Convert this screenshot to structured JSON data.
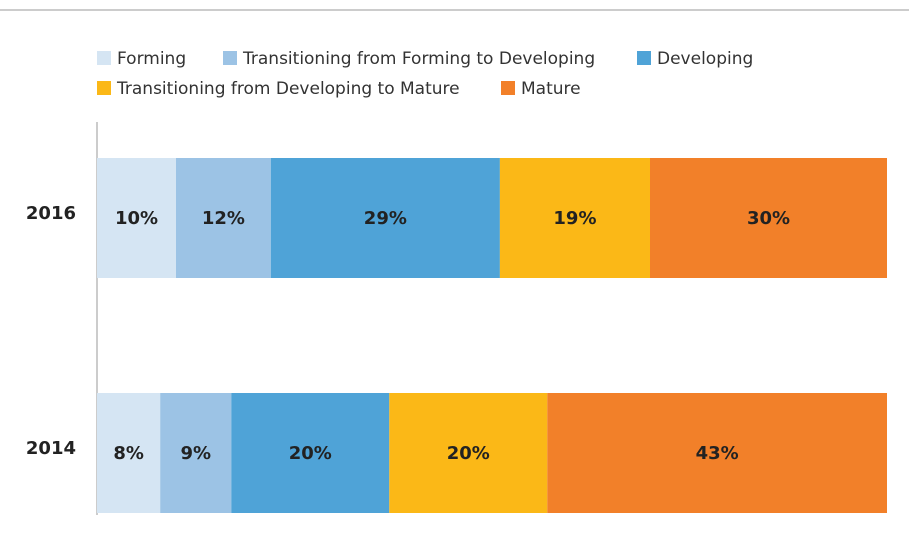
{
  "chart_data": {
    "type": "stacked-bar-horizontal",
    "categories": [
      "2016",
      "2014"
    ],
    "series": [
      {
        "name": "Forming",
        "color": "#d5e5f3",
        "values": [
          10,
          8
        ],
        "value_labels": [
          "10%",
          "8%"
        ]
      },
      {
        "name": "Transitioning from Forming to Developing",
        "color": "#9cc3e5",
        "values": [
          12,
          9
        ],
        "value_labels": [
          "12%",
          "9%"
        ]
      },
      {
        "name": "Developing",
        "color": "#4fa3d7",
        "values": [
          29,
          20
        ],
        "value_labels": [
          "29%",
          "20%"
        ]
      },
      {
        "name": "Transitioning from Developing to Mature",
        "color": "#fbb817",
        "values": [
          19,
          20
        ],
        "value_labels": [
          "19%",
          "20%"
        ]
      },
      {
        "name": "Mature",
        "color": "#f28029",
        "values": [
          30,
          43
        ],
        "value_labels": [
          "30%",
          "43%"
        ]
      }
    ]
  }
}
